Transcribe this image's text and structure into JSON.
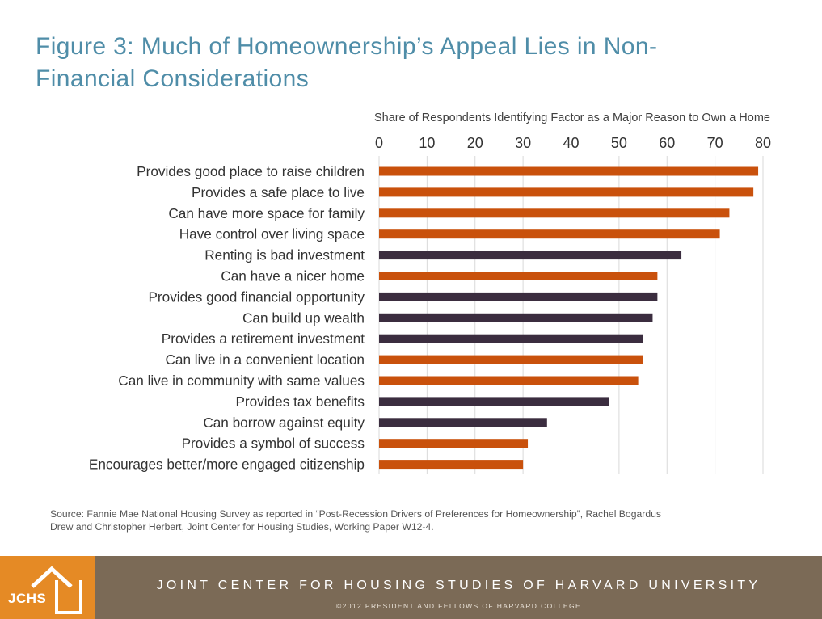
{
  "title": {
    "line1": "Figure 3: Much of Homeownership’s Appeal Lies in Non-",
    "line2": "Financial Considerations"
  },
  "chart_data": {
    "type": "bar",
    "orientation": "horizontal",
    "title": "Share of Respondents Identifying Factor as a Major Reason to Own a Home",
    "xlabel": "",
    "ylabel": "",
    "xlim": [
      0,
      80
    ],
    "ticks": [
      0,
      10,
      20,
      30,
      40,
      50,
      60,
      70,
      80
    ],
    "grid": true,
    "colors": {
      "non_financial": "#c9510c",
      "financial": "#3b2d3f"
    },
    "categories": [
      "Provides good place to raise children",
      "Provides a safe place to live",
      "Can have more space for family",
      "Have control over living space",
      "Renting is bad investment",
      "Can have a nicer home",
      "Provides good financial opportunity",
      "Can build up wealth",
      "Provides a retirement investment",
      "Can live in a convenient location",
      "Can live in community with same values",
      "Provides tax benefits",
      "Can borrow against equity",
      "Provides a symbol of success",
      "Encourages better/more engaged citizenship"
    ],
    "values": [
      79,
      78,
      73,
      71,
      63,
      58,
      58,
      57,
      55,
      55,
      54,
      48,
      35,
      31,
      30
    ],
    "kinds": [
      "non_financial",
      "non_financial",
      "non_financial",
      "non_financial",
      "financial",
      "non_financial",
      "financial",
      "financial",
      "financial",
      "non_financial",
      "non_financial",
      "financial",
      "financial",
      "non_financial",
      "non_financial"
    ]
  },
  "source": "Source: Fannie Mae National Housing Survey as reported in “Post-Recession Drivers of Preferences for Homeownership”, Rachel Bogardus Drew and Christopher Herbert, Joint Center for Housing Studies, Working Paper W12-4.",
  "footer": {
    "logo_text": "JCHS",
    "org_name": "JOINT CENTER FOR HOUSING STUDIES OF HARVARD UNIVERSITY",
    "copyright": "©2012 PRESIDENT AND FELLOWS OF HARVARD COLLEGE",
    "colors": {
      "logo_bg": "#e58a25",
      "band_bg": "#7b6a56"
    }
  }
}
